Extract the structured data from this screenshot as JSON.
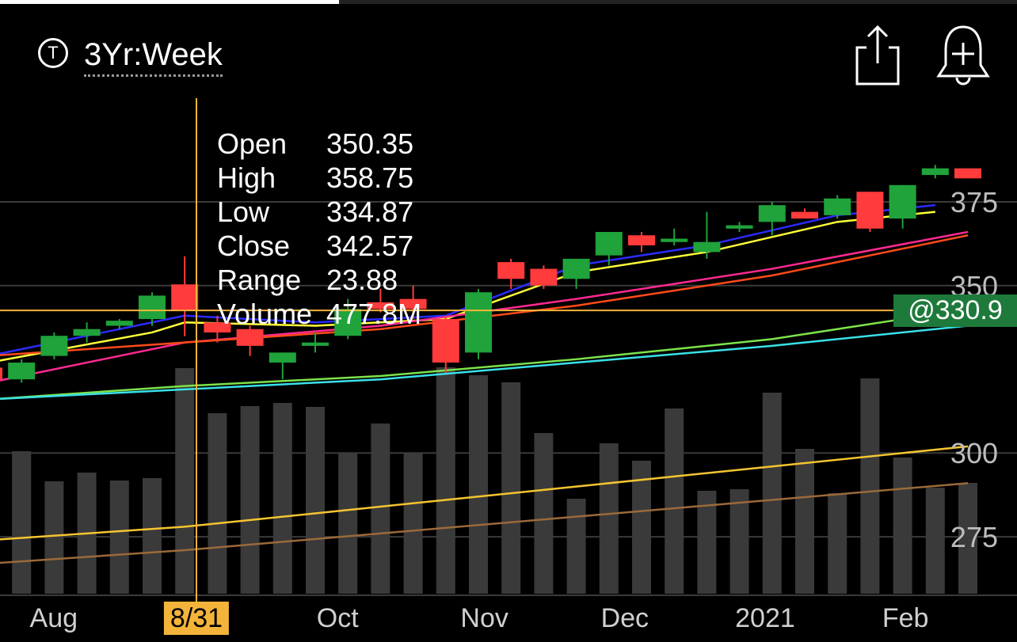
{
  "header": {
    "symbol_icon_glyph": "T",
    "period": "3Yr:Week",
    "share_icon": "share-icon",
    "alert_icon": "bell-plus-icon",
    "progress": 0.333
  },
  "tooltip": {
    "rows": [
      {
        "key": "Open",
        "value": "350.35"
      },
      {
        "key": "High",
        "value": "358.75"
      },
      {
        "key": "Low",
        "value": "334.87"
      },
      {
        "key": "Close",
        "value": "342.57"
      },
      {
        "key": "Range",
        "value": "23.88"
      },
      {
        "key": "Volume",
        "value": "477.8M"
      }
    ]
  },
  "current_price": "@330.9",
  "selected_date": "8/31",
  "colors": {
    "up": "#1fa33a",
    "down": "#ff3b3b",
    "crosshair": "#f4b43a",
    "badge": "#1e7a3b"
  },
  "chart_data": {
    "type": "candlestick",
    "price_axis": {
      "ticks": [
        275,
        300,
        350,
        375
      ],
      "tick_labels": [
        "275",
        "300",
        "350",
        "375"
      ],
      "range": [
        258,
        405
      ]
    },
    "x_labels": [
      {
        "label": "Aug",
        "index": 1.5
      },
      {
        "label": "8/31",
        "index": 5.5,
        "selected": true
      },
      {
        "label": "Oct",
        "index": 10.2
      },
      {
        "label": "Nov",
        "index": 14.7
      },
      {
        "label": "Dec",
        "index": 19
      },
      {
        "label": "2021",
        "index": 23.3
      },
      {
        "label": "Feb",
        "index": 27.6
      }
    ],
    "candles": [
      {
        "o": 325.5,
        "h": 327.5,
        "l": 322,
        "c": 322,
        "v": 135
      },
      {
        "o": 322,
        "h": 328,
        "l": 321,
        "c": 327,
        "v": 180
      },
      {
        "o": 329,
        "h": 336,
        "l": 328,
        "c": 335,
        "v": 142
      },
      {
        "o": 335,
        "h": 339,
        "l": 333,
        "c": 337,
        "v": 153
      },
      {
        "o": 338,
        "h": 340,
        "l": 337,
        "c": 339.5,
        "v": 143
      },
      {
        "o": 340,
        "h": 348,
        "l": 338,
        "c": 347,
        "v": 146
      },
      {
        "o": 350.35,
        "h": 358.75,
        "l": 334.87,
        "c": 342.57,
        "v": 285
      },
      {
        "o": 339,
        "h": 341,
        "l": 333,
        "c": 336,
        "v": 228
      },
      {
        "o": 337,
        "h": 338,
        "l": 329,
        "c": 332,
        "v": 237
      },
      {
        "o": 327,
        "h": 330,
        "l": 322,
        "c": 330,
        "v": 241
      },
      {
        "o": 332,
        "h": 336,
        "l": 330,
        "c": 333,
        "v": 236
      },
      {
        "o": 335,
        "h": 346,
        "l": 334,
        "c": 343,
        "v": 178
      },
      {
        "o": 345,
        "h": 349,
        "l": 342,
        "c": 343,
        "v": 215
      },
      {
        "o": 346,
        "h": 350,
        "l": 340,
        "c": 343,
        "v": 177
      },
      {
        "o": 340,
        "h": 341,
        "l": 324,
        "c": 327,
        "v": 286
      },
      {
        "o": 330,
        "h": 349,
        "l": 328,
        "c": 348,
        "v": 276
      },
      {
        "o": 357,
        "h": 358,
        "l": 349,
        "c": 352,
        "v": 267
      },
      {
        "o": 355,
        "h": 356,
        "l": 349,
        "c": 350,
        "v": 203
      },
      {
        "o": 352,
        "h": 358,
        "l": 349,
        "c": 358,
        "v": 120
      },
      {
        "o": 359,
        "h": 366,
        "l": 356,
        "c": 366,
        "v": 190
      },
      {
        "o": 365,
        "h": 366,
        "l": 360,
        "c": 362,
        "v": 168
      },
      {
        "o": 363,
        "h": 367,
        "l": 362,
        "c": 364,
        "v": 234
      },
      {
        "o": 360,
        "h": 372,
        "l": 358,
        "c": 363,
        "v": 130
      },
      {
        "o": 367,
        "h": 369,
        "l": 366,
        "c": 368,
        "v": 132
      },
      {
        "o": 369,
        "h": 375,
        "l": 365,
        "c": 374,
        "v": 254
      },
      {
        "o": 372,
        "h": 373,
        "l": 370,
        "c": 370,
        "v": 183
      },
      {
        "o": 371,
        "h": 377,
        "l": 370,
        "c": 376,
        "v": 127
      },
      {
        "o": 378,
        "h": 378,
        "l": 366,
        "c": 367,
        "v": 272
      },
      {
        "o": 370,
        "h": 380,
        "l": 367,
        "c": 380,
        "v": 172
      },
      {
        "o": 383,
        "h": 386,
        "l": 382,
        "c": 385,
        "v": 134
      },
      {
        "o": 385,
        "h": 385,
        "l": 382,
        "c": 382,
        "v": 140
      }
    ],
    "moving_averages": [
      {
        "color": "#2b2bff",
        "values": [
          [
            0,
            329
          ],
          [
            5,
            339
          ],
          [
            6,
            341
          ],
          [
            10,
            339
          ],
          [
            14,
            341
          ],
          [
            18,
            356
          ],
          [
            22,
            362
          ],
          [
            26,
            371
          ],
          [
            29,
            374
          ]
        ]
      },
      {
        "color": "#ffff3a",
        "values": [
          [
            0,
            327
          ],
          [
            5,
            336
          ],
          [
            6,
            339
          ],
          [
            10,
            338
          ],
          [
            14,
            340
          ],
          [
            18,
            354
          ],
          [
            22,
            360
          ],
          [
            26,
            369
          ],
          [
            29,
            372
          ]
        ]
      },
      {
        "color": "#ff2a90",
        "values": [
          [
            0,
            321
          ],
          [
            6,
            333
          ],
          [
            12,
            338
          ],
          [
            18,
            346
          ],
          [
            24,
            355
          ],
          [
            30,
            366
          ]
        ]
      },
      {
        "color": "#ff4a1a",
        "values": [
          [
            0,
            329
          ],
          [
            6,
            333
          ],
          [
            12,
            337
          ],
          [
            18,
            344
          ],
          [
            24,
            353
          ],
          [
            30,
            365
          ]
        ]
      },
      {
        "color": "#7de34a",
        "values": [
          [
            0,
            316
          ],
          [
            6,
            320
          ],
          [
            12,
            323
          ],
          [
            18,
            328
          ],
          [
            24,
            334
          ],
          [
            30,
            343
          ]
        ]
      },
      {
        "color": "#3ae0e8",
        "values": [
          [
            0,
            316
          ],
          [
            6,
            319
          ],
          [
            12,
            322
          ],
          [
            18,
            327
          ],
          [
            24,
            332
          ],
          [
            30,
            338
          ]
        ]
      },
      {
        "color": "#f4c430",
        "values": [
          [
            0,
            274
          ],
          [
            6,
            278
          ],
          [
            12,
            284
          ],
          [
            18,
            290
          ],
          [
            24,
            296
          ],
          [
            30,
            302
          ]
        ]
      },
      {
        "color": "#9a6a3a",
        "values": [
          [
            0,
            267
          ],
          [
            6,
            271
          ],
          [
            12,
            276
          ],
          [
            18,
            281
          ],
          [
            24,
            286
          ],
          [
            30,
            291
          ]
        ]
      }
    ]
  }
}
